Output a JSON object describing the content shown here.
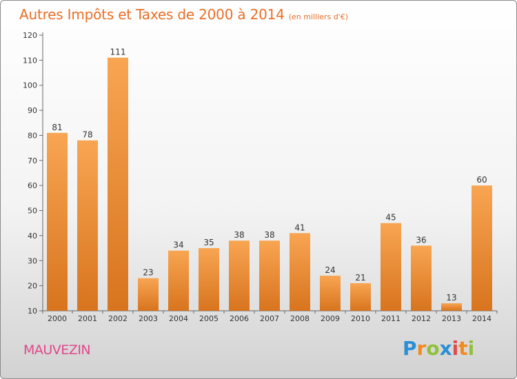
{
  "header": {
    "title": "Autres Impôts et Taxes de 2000 à 2014",
    "unit": "(en milliers d'€)"
  },
  "commune": "MAUVEZIN",
  "brand": {
    "text": "Proxiti",
    "letters": [
      {
        "ch": "P",
        "color": "#2b8fd6"
      },
      {
        "ch": "r",
        "color": "#f28a1e"
      },
      {
        "ch": "o",
        "color": "#8fc23a"
      },
      {
        "ch": "x",
        "color": "#2b8fd6"
      },
      {
        "ch": "i",
        "color": "#e14b4b"
      },
      {
        "ch": "t",
        "color": "#f28a1e"
      },
      {
        "ch": "i",
        "color": "#8fc23a"
      }
    ]
  },
  "chart_data": {
    "type": "bar",
    "categories": [
      "2000",
      "2001",
      "2002",
      "2003",
      "2004",
      "2005",
      "2006",
      "2007",
      "2008",
      "2009",
      "2010",
      "2011",
      "2012",
      "2013",
      "2014"
    ],
    "values": [
      81,
      78,
      111,
      23,
      34,
      35,
      38,
      38,
      41,
      24,
      21,
      45,
      36,
      13,
      60
    ],
    "ylim": [
      10,
      120
    ],
    "yticks": [
      10,
      20,
      30,
      40,
      50,
      60,
      70,
      80,
      90,
      100,
      110,
      120
    ],
    "grid": false,
    "bar_color_top": "#f8a552",
    "bar_color_bottom": "#d8741e"
  }
}
